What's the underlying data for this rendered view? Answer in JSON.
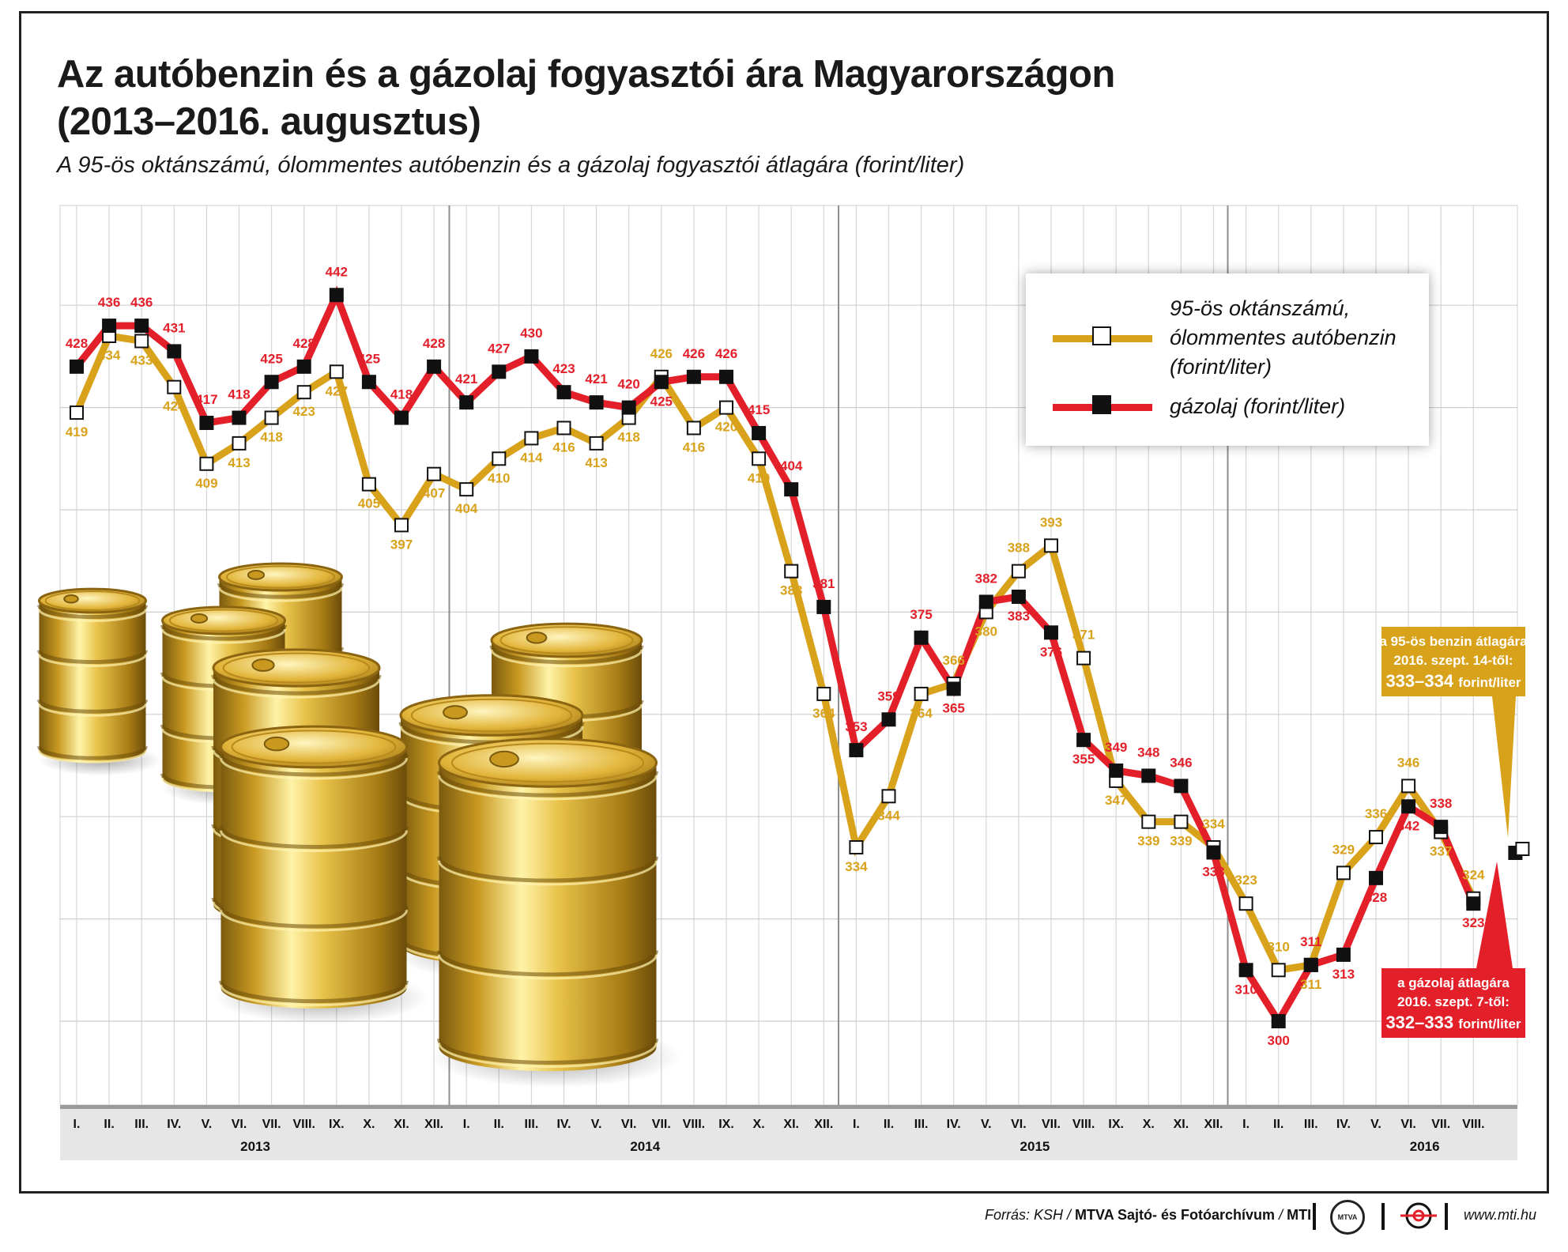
{
  "title_line1": "Az autóbenzin és a gázolaj fogyasztói ára Magyarországon",
  "title_line2": "(2013–2016. augusztus)",
  "subtitle": "A 95-ös oktánszámú, ólommentes autóbenzin és a gázolaj fogyasztói átlagára (forint/liter)",
  "colors": {
    "petrol": "#d9a21b",
    "diesel": "#e3202a",
    "grid": "#cccccc",
    "axis_band": "#e6e6e6",
    "callout_petrol": "#d9a21b",
    "callout_diesel": "#e3202a"
  },
  "legend": {
    "petrol": "95-ös oktánszámú,\nólommentes autóbenzin\n(forint/liter)",
    "diesel": "gázolaj (forint/liter)"
  },
  "callout_petrol": {
    "line1": "a 95-ös benzin átlagára",
    "line2": "2016. szept. 14-től:",
    "range": "333–334",
    "unit": "forint/liter"
  },
  "callout_diesel": {
    "line1": "a gázolaj átlagára",
    "line2": "2016. szept. 7-től:",
    "range": "332–333",
    "unit": "forint/liter"
  },
  "footer": {
    "source_prefix": "Forrás: KSH / ",
    "source_bold": "MTVA Sajtó- és Fotóarchívum",
    "source_sep": " / ",
    "source_mti": "MTI",
    "logo_mtva": "MTVA",
    "url": "www.mti.hu"
  },
  "chart_data": {
    "type": "line",
    "title": "Az autóbenzin és a gázolaj fogyasztói ára Magyarországon",
    "ylabel": "forint/liter",
    "ylim": [
      290,
      450
    ],
    "years": [
      "2013",
      "2014",
      "2015",
      "2016"
    ],
    "categories": [
      "I.",
      "II.",
      "III.",
      "IV.",
      "V.",
      "VI.",
      "VII.",
      "VIII.",
      "IX.",
      "X.",
      "XI.",
      "XII.",
      "I.",
      "II.",
      "III.",
      "IV.",
      "V.",
      "VI.",
      "VII.",
      "VIII.",
      "IX.",
      "X.",
      "XI.",
      "XII.",
      "I.",
      "II.",
      "III.",
      "IV.",
      "V.",
      "VI.",
      "VII.",
      "VIII.",
      "IX.",
      "X.",
      "XI.",
      "XII.",
      "I.",
      "II.",
      "III.",
      "IV.",
      "V.",
      "VI.",
      "VII.",
      "VIII."
    ],
    "series": [
      {
        "name": "95-ös oktánszámú, ólommentes autóbenzin (forint/liter)",
        "values": [
          419,
          434,
          433,
          424,
          409,
          413,
          418,
          423,
          427,
          405,
          397,
          407,
          404,
          410,
          414,
          416,
          413,
          418,
          426,
          416,
          420,
          410,
          388,
          364,
          334,
          344,
          364,
          366,
          380,
          388,
          393,
          371,
          347,
          339,
          339,
          334,
          323,
          310,
          311,
          329,
          336,
          346,
          337,
          324
        ]
      },
      {
        "name": "gázolaj (forint/liter)",
        "values": [
          428,
          436,
          436,
          431,
          417,
          418,
          425,
          428,
          442,
          425,
          418,
          428,
          421,
          427,
          430,
          423,
          421,
          420,
          425,
          426,
          426,
          415,
          404,
          381,
          353,
          359,
          375,
          365,
          382,
          383,
          376,
          355,
          349,
          348,
          346,
          333,
          310,
          300,
          311,
          313,
          328,
          342,
          338,
          323
        ]
      }
    ],
    "september_2016": {
      "petrol": "333–334",
      "diesel": "332–333"
    },
    "grid": true,
    "legend_position": "top-right"
  }
}
